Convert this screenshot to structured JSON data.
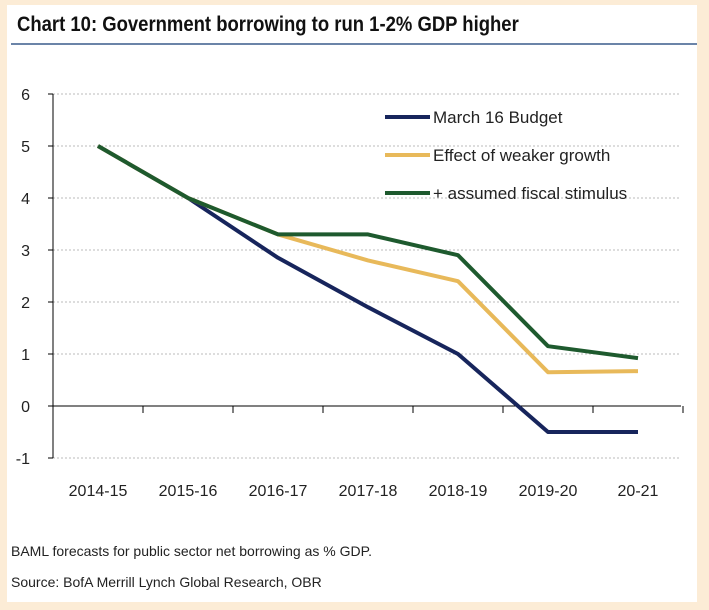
{
  "title": "Chart 10: Government borrowing to run 1-2% GDP higher",
  "footnote": "BAML forecasts for public sector net borrowing as % GDP.",
  "source": "Source: BofA Merrill Lynch Global Research, OBR",
  "chart_data": {
    "type": "line",
    "title": "Chart 10: Government borrowing to run 1-2% GDP higher",
    "categories": [
      "2014-15",
      "2015-16",
      "2016-17",
      "2017-18",
      "2018-19",
      "2019-20",
      "20-21"
    ],
    "ylim": [
      -1,
      6
    ],
    "yticks": [
      -1,
      0,
      1,
      2,
      3,
      4,
      5,
      6
    ],
    "grid": true,
    "legend": "top-right",
    "series": [
      {
        "name": "March 16 Budget",
        "color": "#17255c",
        "values": [
          5,
          4,
          2.85,
          1.9,
          1.0,
          -0.5,
          -0.5
        ]
      },
      {
        "name": "Effect of weaker growth",
        "color": "#e8b95a",
        "values": [
          5,
          4,
          3.3,
          2.8,
          2.4,
          0.65,
          0.67
        ]
      },
      {
        "name": "+ assumed fiscal stimulus",
        "color": "#1e5a2e",
        "values": [
          5,
          4,
          3.3,
          3.3,
          2.9,
          1.15,
          0.92
        ]
      }
    ]
  }
}
